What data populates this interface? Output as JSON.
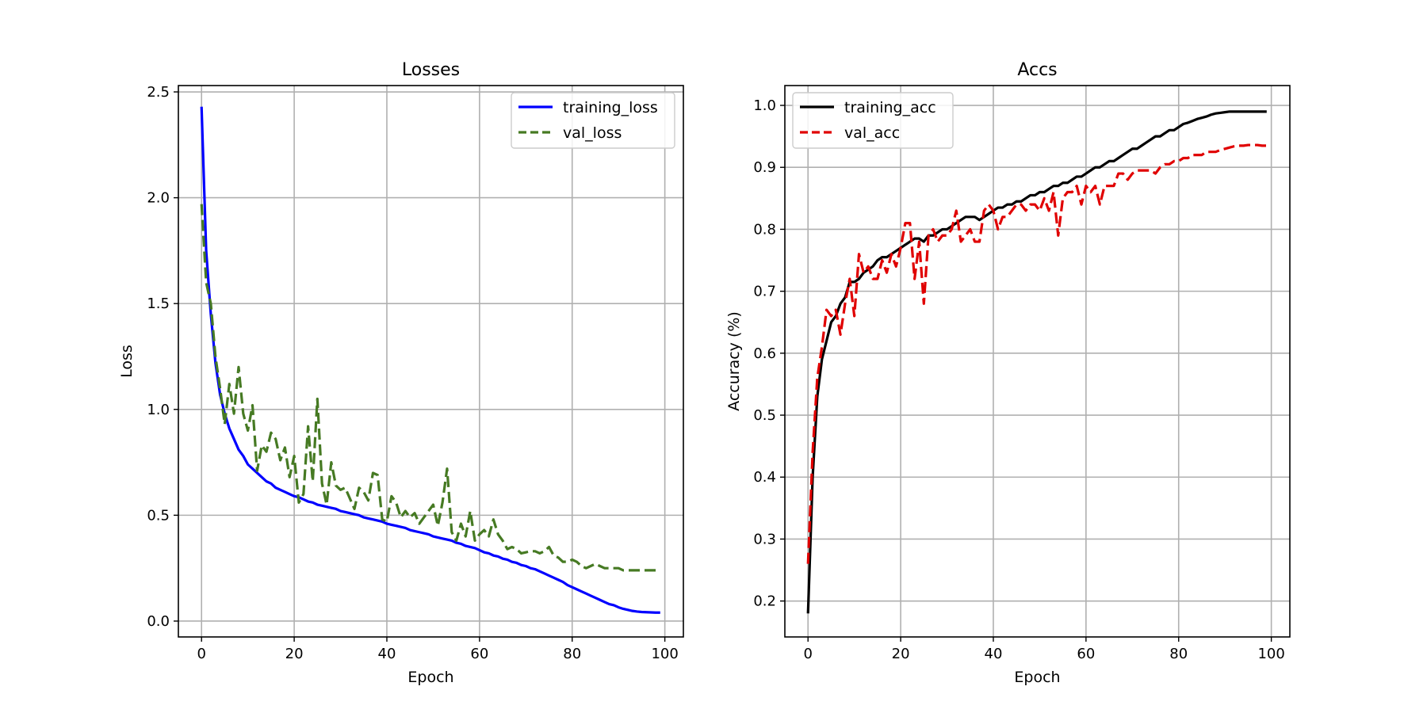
{
  "chart_data": [
    {
      "type": "line",
      "title": "Losses",
      "xlabel": "Epoch",
      "ylabel": "Loss",
      "xlim": [
        -5,
        104
      ],
      "ylim": [
        -0.075,
        2.53
      ],
      "xticks": [
        0,
        20,
        40,
        60,
        80,
        100
      ],
      "yticks": [
        0.0,
        0.5,
        1.0,
        1.5,
        2.0,
        2.5
      ],
      "xtick_labels": [
        "0",
        "20",
        "40",
        "60",
        "80",
        "100"
      ],
      "ytick_labels": [
        "0.0",
        "0.5",
        "1.0",
        "1.5",
        "2.0",
        "2.5"
      ],
      "grid": true,
      "legend_position": "top-right",
      "series": [
        {
          "name": "training_loss",
          "color": "#0000ff",
          "dash": "solid",
          "x": [
            0,
            1,
            2,
            3,
            4,
            5,
            6,
            7,
            8,
            9,
            10,
            11,
            12,
            13,
            14,
            15,
            16,
            17,
            18,
            19,
            20,
            21,
            22,
            23,
            24,
            25,
            26,
            27,
            28,
            29,
            30,
            31,
            32,
            33,
            34,
            35,
            36,
            37,
            38,
            39,
            40,
            41,
            42,
            43,
            44,
            45,
            46,
            47,
            48,
            49,
            50,
            51,
            52,
            53,
            54,
            55,
            56,
            57,
            58,
            59,
            60,
            61,
            62,
            63,
            64,
            65,
            66,
            67,
            68,
            69,
            70,
            71,
            72,
            73,
            74,
            75,
            76,
            77,
            78,
            79,
            80,
            81,
            82,
            83,
            84,
            85,
            86,
            87,
            88,
            89,
            90,
            91,
            92,
            93,
            94,
            95,
            96,
            97,
            98,
            99
          ],
          "y": [
            2.43,
            1.75,
            1.45,
            1.22,
            1.07,
            0.98,
            0.91,
            0.86,
            0.81,
            0.78,
            0.74,
            0.72,
            0.7,
            0.68,
            0.66,
            0.65,
            0.63,
            0.62,
            0.61,
            0.6,
            0.59,
            0.585,
            0.575,
            0.565,
            0.56,
            0.55,
            0.545,
            0.54,
            0.535,
            0.53,
            0.52,
            0.515,
            0.51,
            0.505,
            0.5,
            0.49,
            0.485,
            0.48,
            0.475,
            0.47,
            0.46,
            0.455,
            0.45,
            0.445,
            0.44,
            0.43,
            0.425,
            0.42,
            0.415,
            0.41,
            0.4,
            0.395,
            0.39,
            0.385,
            0.38,
            0.37,
            0.365,
            0.355,
            0.35,
            0.345,
            0.335,
            0.325,
            0.32,
            0.31,
            0.305,
            0.295,
            0.29,
            0.28,
            0.275,
            0.265,
            0.26,
            0.25,
            0.245,
            0.235,
            0.225,
            0.215,
            0.205,
            0.195,
            0.185,
            0.17,
            0.16,
            0.15,
            0.14,
            0.13,
            0.12,
            0.11,
            0.1,
            0.09,
            0.08,
            0.075,
            0.065,
            0.058,
            0.053,
            0.048,
            0.045,
            0.043,
            0.042,
            0.041,
            0.04,
            0.04
          ]
        },
        {
          "name": "val_loss",
          "color": "#467a23",
          "dash": "dashed",
          "x": [
            0,
            1,
            2,
            3,
            4,
            5,
            6,
            7,
            8,
            9,
            10,
            11,
            12,
            13,
            14,
            15,
            16,
            17,
            18,
            19,
            20,
            21,
            22,
            23,
            24,
            25,
            26,
            27,
            28,
            29,
            30,
            31,
            32,
            33,
            34,
            35,
            36,
            37,
            38,
            39,
            40,
            41,
            42,
            43,
            44,
            45,
            46,
            47,
            48,
            49,
            50,
            51,
            52,
            53,
            54,
            55,
            56,
            57,
            58,
            59,
            60,
            61,
            62,
            63,
            64,
            65,
            66,
            67,
            68,
            69,
            70,
            71,
            72,
            73,
            74,
            75,
            76,
            77,
            78,
            79,
            80,
            81,
            82,
            83,
            84,
            85,
            86,
            87,
            88,
            89,
            90,
            91,
            92,
            93,
            94,
            95,
            96,
            97,
            98,
            99
          ],
          "y": [
            1.97,
            1.6,
            1.5,
            1.25,
            1.1,
            0.93,
            1.12,
            0.98,
            1.2,
            0.98,
            0.9,
            1.02,
            0.71,
            0.83,
            0.8,
            0.89,
            0.86,
            0.76,
            0.82,
            0.68,
            0.78,
            0.56,
            0.6,
            0.92,
            0.66,
            1.05,
            0.65,
            0.55,
            0.75,
            0.64,
            0.62,
            0.63,
            0.58,
            0.53,
            0.63,
            0.61,
            0.57,
            0.7,
            0.69,
            0.48,
            0.47,
            0.59,
            0.56,
            0.49,
            0.52,
            0.49,
            0.51,
            0.46,
            0.49,
            0.52,
            0.55,
            0.45,
            0.56,
            0.72,
            0.42,
            0.38,
            0.46,
            0.4,
            0.52,
            0.38,
            0.41,
            0.43,
            0.4,
            0.48,
            0.41,
            0.38,
            0.34,
            0.35,
            0.34,
            0.32,
            0.325,
            0.33,
            0.33,
            0.32,
            0.33,
            0.35,
            0.31,
            0.3,
            0.28,
            0.28,
            0.29,
            0.28,
            0.26,
            0.25,
            0.26,
            0.27,
            0.26,
            0.25,
            0.25,
            0.25,
            0.25,
            0.24,
            0.24,
            0.24,
            0.24,
            0.24,
            0.24,
            0.24,
            0.24,
            0.24
          ]
        }
      ]
    },
    {
      "type": "line",
      "title": "Accs",
      "xlabel": "Epoch",
      "ylabel": "Accuracy (%)",
      "xlim": [
        -5,
        104
      ],
      "ylim": [
        0.142,
        1.032
      ],
      "xticks": [
        0,
        20,
        40,
        60,
        80,
        100
      ],
      "yticks": [
        0.2,
        0.3,
        0.4,
        0.5,
        0.6,
        0.7,
        0.8,
        0.9,
        1.0
      ],
      "xtick_labels": [
        "0",
        "20",
        "40",
        "60",
        "80",
        "100"
      ],
      "ytick_labels": [
        "0.2",
        "0.3",
        "0.4",
        "0.5",
        "0.6",
        "0.7",
        "0.8",
        "0.9",
        "1.0"
      ],
      "grid": true,
      "legend_position": "top-left",
      "series": [
        {
          "name": "training_acc",
          "color": "#000000",
          "dash": "solid",
          "x": [
            0,
            1,
            2,
            3,
            4,
            5,
            6,
            7,
            8,
            9,
            10,
            11,
            12,
            13,
            14,
            15,
            16,
            17,
            18,
            19,
            20,
            21,
            22,
            23,
            24,
            25,
            26,
            27,
            28,
            29,
            30,
            31,
            32,
            33,
            34,
            35,
            36,
            37,
            38,
            39,
            40,
            41,
            42,
            43,
            44,
            45,
            46,
            47,
            48,
            49,
            50,
            51,
            52,
            53,
            54,
            55,
            56,
            57,
            58,
            59,
            60,
            61,
            62,
            63,
            64,
            65,
            66,
            67,
            68,
            69,
            70,
            71,
            72,
            73,
            74,
            75,
            76,
            77,
            78,
            79,
            80,
            81,
            82,
            83,
            84,
            85,
            86,
            87,
            88,
            89,
            90,
            91,
            92,
            93,
            94,
            95,
            96,
            97,
            98,
            99
          ],
          "y": [
            0.18,
            0.4,
            0.53,
            0.59,
            0.62,
            0.65,
            0.66,
            0.68,
            0.69,
            0.715,
            0.715,
            0.72,
            0.73,
            0.735,
            0.74,
            0.75,
            0.755,
            0.755,
            0.76,
            0.765,
            0.77,
            0.775,
            0.78,
            0.785,
            0.785,
            0.78,
            0.79,
            0.79,
            0.795,
            0.8,
            0.8,
            0.805,
            0.81,
            0.815,
            0.82,
            0.82,
            0.82,
            0.815,
            0.82,
            0.825,
            0.83,
            0.835,
            0.835,
            0.84,
            0.84,
            0.845,
            0.845,
            0.85,
            0.855,
            0.855,
            0.86,
            0.86,
            0.865,
            0.87,
            0.87,
            0.875,
            0.875,
            0.88,
            0.885,
            0.885,
            0.89,
            0.895,
            0.9,
            0.9,
            0.905,
            0.91,
            0.91,
            0.915,
            0.92,
            0.925,
            0.93,
            0.93,
            0.935,
            0.94,
            0.945,
            0.95,
            0.95,
            0.955,
            0.96,
            0.96,
            0.965,
            0.97,
            0.972,
            0.975,
            0.978,
            0.98,
            0.982,
            0.985,
            0.987,
            0.988,
            0.989,
            0.99,
            0.99,
            0.99,
            0.99,
            0.99,
            0.99,
            0.99,
            0.99,
            0.99
          ]
        },
        {
          "name": "val_acc",
          "color": "#e00000",
          "dash": "dashed",
          "x": [
            0,
            1,
            2,
            3,
            4,
            5,
            6,
            7,
            8,
            9,
            10,
            11,
            12,
            13,
            14,
            15,
            16,
            17,
            18,
            19,
            20,
            21,
            22,
            23,
            24,
            25,
            26,
            27,
            28,
            29,
            30,
            31,
            32,
            33,
            34,
            35,
            36,
            37,
            38,
            39,
            40,
            41,
            42,
            43,
            44,
            45,
            46,
            47,
            48,
            49,
            50,
            51,
            52,
            53,
            54,
            55,
            56,
            57,
            58,
            59,
            60,
            61,
            62,
            63,
            64,
            65,
            66,
            67,
            68,
            69,
            70,
            71,
            72,
            73,
            74,
            75,
            76,
            77,
            78,
            79,
            80,
            81,
            82,
            83,
            84,
            85,
            86,
            87,
            88,
            89,
            90,
            91,
            92,
            93,
            94,
            95,
            96,
            97,
            98,
            99
          ],
          "y": [
            0.26,
            0.44,
            0.56,
            0.61,
            0.67,
            0.66,
            0.67,
            0.63,
            0.68,
            0.72,
            0.66,
            0.76,
            0.73,
            0.74,
            0.72,
            0.72,
            0.75,
            0.73,
            0.76,
            0.74,
            0.77,
            0.81,
            0.81,
            0.72,
            0.78,
            0.68,
            0.79,
            0.8,
            0.78,
            0.79,
            0.79,
            0.8,
            0.83,
            0.78,
            0.79,
            0.8,
            0.78,
            0.78,
            0.83,
            0.84,
            0.83,
            0.8,
            0.82,
            0.82,
            0.83,
            0.84,
            0.84,
            0.83,
            0.84,
            0.84,
            0.83,
            0.85,
            0.83,
            0.86,
            0.79,
            0.85,
            0.86,
            0.86,
            0.87,
            0.84,
            0.87,
            0.86,
            0.87,
            0.84,
            0.87,
            0.87,
            0.87,
            0.89,
            0.89,
            0.88,
            0.89,
            0.895,
            0.895,
            0.895,
            0.895,
            0.89,
            0.9,
            0.905,
            0.905,
            0.91,
            0.91,
            0.915,
            0.915,
            0.92,
            0.92,
            0.92,
            0.925,
            0.925,
            0.925,
            0.928,
            0.93,
            0.932,
            0.934,
            0.935,
            0.935,
            0.936,
            0.936,
            0.936,
            0.935,
            0.935
          ]
        }
      ]
    }
  ]
}
